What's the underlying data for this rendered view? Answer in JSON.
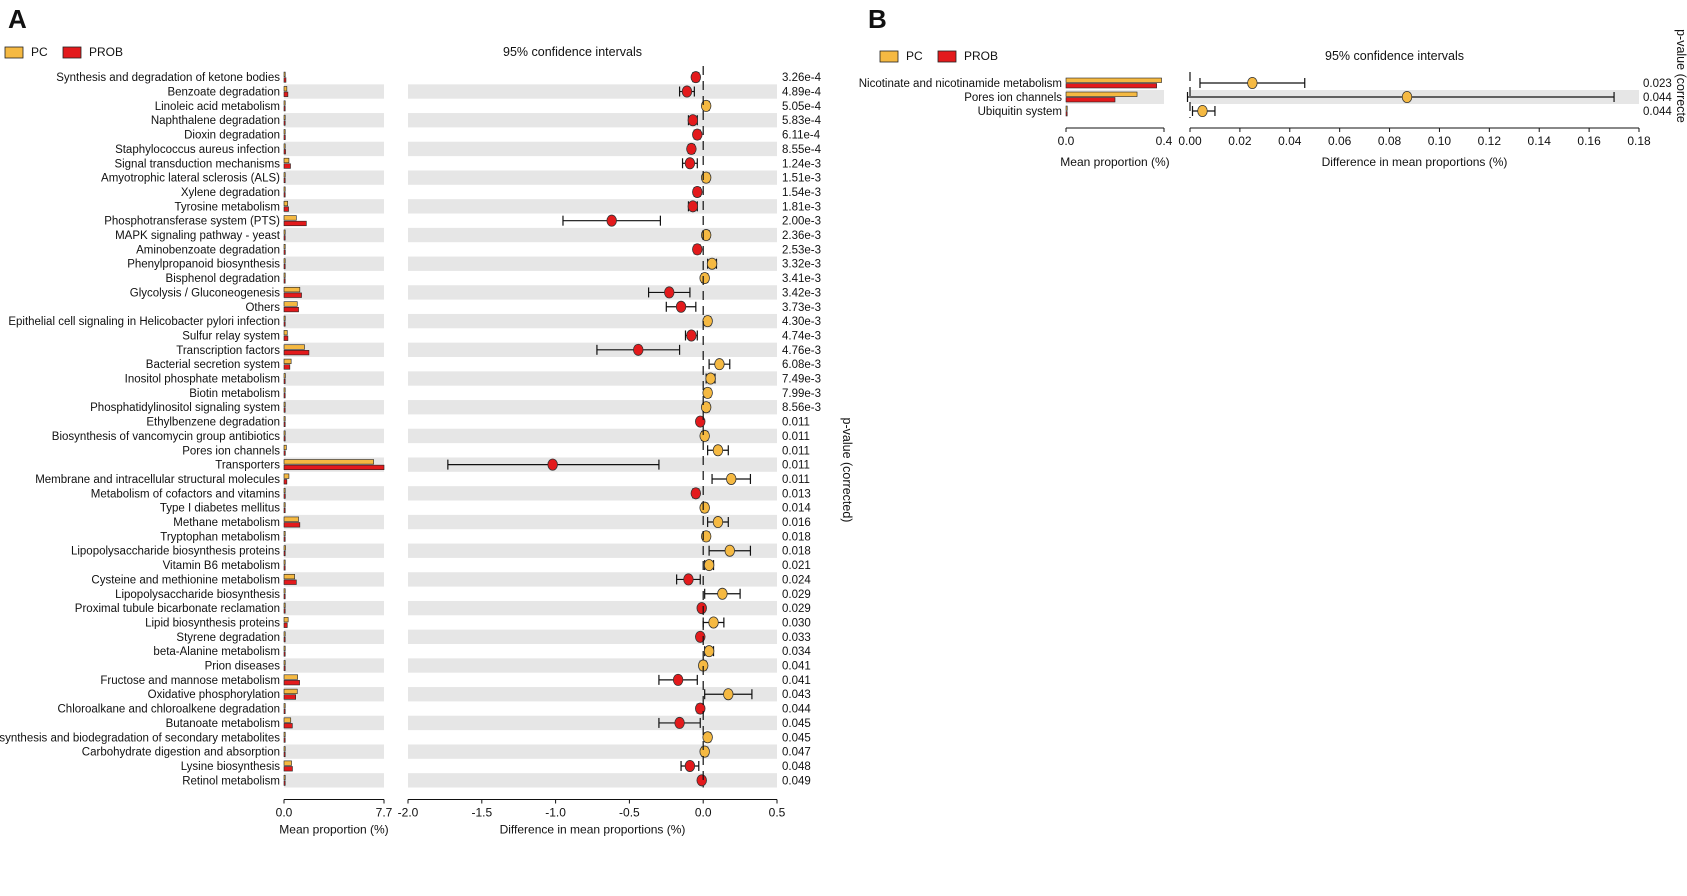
{
  "colors": {
    "pc": "#f5b942",
    "prob": "#e31a1c",
    "stripe": "#e6e6e6"
  },
  "chart_data": [
    {
      "panel": "A",
      "type": "bar",
      "title": "95% confidence intervals",
      "legend": [
        "PC",
        "PROB"
      ],
      "categories": [
        "Synthesis and degradation of ketone bodies",
        "Benzoate degradation",
        "Linoleic acid metabolism",
        "Naphthalene degradation",
        "Dioxin degradation",
        "Staphylococcus aureus infection",
        "Signal transduction mechanisms",
        "Amyotrophic lateral sclerosis (ALS)",
        "Xylene degradation",
        "Tyrosine metabolism",
        "Phosphotransferase system (PTS)",
        "MAPK signaling pathway - yeast",
        "Aminobenzoate degradation",
        "Phenylpropanoid biosynthesis",
        "Bisphenol degradation",
        "Glycolysis / Gluconeogenesis",
        "Others",
        "Epithelial cell signaling in Helicobacter pylori infection",
        "Sulfur relay system",
        "Transcription factors",
        "Bacterial secretion system",
        "Inositol phosphate metabolism",
        "Biotin metabolism",
        "Phosphatidylinositol signaling system",
        "Ethylbenzene degradation",
        "Biosynthesis of vancomycin group antibiotics",
        "Pores ion channels",
        "Transporters",
        "Membrane and intracellular structural molecules",
        "Metabolism of cofactors and vitamins",
        "Type I diabetes mellitus",
        "Methane metabolism",
        "Tryptophan metabolism",
        "Lipopolysaccharide biosynthesis proteins",
        "Vitamin B6 metabolism",
        "Cysteine and methionine metabolism",
        "Lipopolysaccharide biosynthesis",
        "Proximal tubule bicarbonate reclamation",
        "Lipid biosynthesis proteins",
        "Styrene degradation",
        "beta-Alanine metabolism",
        "Prion diseases",
        "Fructose and mannose metabolism",
        "Oxidative phosphorylation",
        "Chloroalkane and chloroalkene degradation",
        "Butanoate metabolism",
        "Biosynthesis and biodegradation of secondary metabolites",
        "Carbohydrate digestion and absorption",
        "Lysine biosynthesis",
        "Retinol metabolism"
      ],
      "pvalues": [
        "3.26e-4",
        "4.89e-4",
        "5.05e-4",
        "5.83e-4",
        "6.11e-4",
        "8.55e-4",
        "1.24e-3",
        "1.51e-3",
        "1.54e-3",
        "1.81e-3",
        "2.00e-3",
        "2.36e-3",
        "2.53e-3",
        "3.32e-3",
        "3.41e-3",
        "3.42e-3",
        "3.73e-3",
        "4.30e-3",
        "4.74e-3",
        "4.76e-3",
        "6.08e-3",
        "7.49e-3",
        "7.99e-3",
        "8.56e-3",
        "0.011",
        "0.011",
        "0.011",
        "0.011",
        "0.011",
        "0.013",
        "0.014",
        "0.016",
        "0.018",
        "0.018",
        "0.021",
        "0.024",
        "0.029",
        "0.029",
        "0.030",
        "0.033",
        "0.034",
        "0.041",
        "0.041",
        "0.043",
        "0.044",
        "0.045",
        "0.045",
        "0.047",
        "0.048",
        "0.049"
      ],
      "series": [
        {
          "name": "PC",
          "values": [
            0.05,
            0.22,
            0.05,
            0.05,
            0.05,
            0.05,
            0.38,
            0.04,
            0.05,
            0.28,
            0.95,
            0.04,
            0.05,
            0.06,
            0.05,
            1.22,
            1.02,
            0.06,
            0.25,
            1.58,
            0.55,
            0.1,
            0.07,
            0.06,
            0.03,
            0.06,
            0.18,
            6.9,
            0.38,
            0.06,
            0.03,
            1.12,
            0.08,
            0.12,
            0.05,
            0.82,
            0.08,
            0.03,
            0.32,
            0.04,
            0.08,
            0.05,
            1.05,
            1.02,
            0.04,
            0.52,
            0.06,
            0.03,
            0.58,
            0.03
          ]
        },
        {
          "name": "PROB",
          "values": [
            0.15,
            0.3,
            0.04,
            0.08,
            0.1,
            0.12,
            0.5,
            0.03,
            0.09,
            0.35,
            1.72,
            0.03,
            0.1,
            0.02,
            0.04,
            1.35,
            1.12,
            0.05,
            0.3,
            1.92,
            0.45,
            0.05,
            0.04,
            0.05,
            0.05,
            0.05,
            0.1,
            7.7,
            0.22,
            0.1,
            0.02,
            1.22,
            0.06,
            0.04,
            0.04,
            0.95,
            0.06,
            0.05,
            0.25,
            0.06,
            0.07,
            0.05,
            1.2,
            0.9,
            0.06,
            0.64,
            0.05,
            0.02,
            0.65,
            0.06
          ]
        }
      ],
      "diff": [
        -0.05,
        -0.11,
        0.02,
        -0.07,
        -0.04,
        -0.08,
        -0.09,
        0.02,
        -0.04,
        -0.07,
        -0.62,
        0.02,
        -0.04,
        0.06,
        0.01,
        -0.23,
        -0.15,
        0.03,
        -0.08,
        -0.44,
        0.11,
        0.05,
        0.03,
        0.02,
        -0.02,
        0.01,
        0.1,
        -1.02,
        0.19,
        -0.05,
        0.01,
        0.1,
        0.02,
        0.18,
        0.04,
        -0.1,
        0.13,
        -0.01,
        0.07,
        -0.02,
        0.04,
        0.0,
        -0.17,
        0.17,
        -0.02,
        -0.16,
        0.03,
        0.01,
        -0.09,
        -0.01
      ],
      "ci_low": [
        -0.07,
        -0.16,
        0.0,
        -0.1,
        -0.06,
        -0.1,
        -0.14,
        0.0,
        -0.06,
        -0.1,
        -0.95,
        0.0,
        -0.06,
        0.03,
        -0.01,
        -0.37,
        -0.25,
        0.01,
        -0.12,
        -0.72,
        0.04,
        0.02,
        0.01,
        0.0,
        -0.03,
        -0.01,
        0.03,
        -1.73,
        0.06,
        -0.07,
        -0.01,
        0.03,
        0.0,
        0.04,
        0.01,
        -0.18,
        0.01,
        -0.02,
        0.0,
        -0.03,
        0.01,
        -0.02,
        -0.3,
        0.01,
        -0.04,
        -0.3,
        0.01,
        -0.01,
        -0.15,
        -0.02
      ],
      "ci_high": [
        -0.03,
        -0.06,
        0.04,
        -0.04,
        -0.02,
        -0.06,
        -0.04,
        0.04,
        -0.02,
        -0.04,
        -0.29,
        0.04,
        -0.02,
        0.09,
        0.03,
        -0.09,
        -0.05,
        0.05,
        -0.04,
        -0.16,
        0.18,
        0.08,
        0.05,
        0.04,
        -0.01,
        0.03,
        0.17,
        -0.3,
        0.32,
        -0.03,
        0.03,
        0.17,
        0.04,
        0.32,
        0.07,
        -0.02,
        0.25,
        0.0,
        0.14,
        -0.01,
        0.07,
        0.02,
        -0.04,
        0.33,
        0.0,
        -0.02,
        0.05,
        0.03,
        -0.03,
        0.0
      ],
      "bar_axis": {
        "xlabel": "Mean proportion (%)",
        "xlim": [
          0,
          7.7
        ],
        "ticks": [
          "0.0",
          "7.7"
        ]
      },
      "diff_axis": {
        "xlabel": "Difference in mean proportions (%)",
        "xlim": [
          -2.0,
          0.5
        ],
        "ticks": [
          "-2.0",
          "-1.5",
          "-1.0",
          "-0.5",
          "0.0",
          "0.5"
        ]
      },
      "ylabel_right": "p-value (corrected)"
    },
    {
      "panel": "B",
      "type": "bar",
      "title": "95% confidence intervals",
      "legend": [
        "PC",
        "PROB"
      ],
      "categories": [
        "Nicotinate and nicotinamide metabolism",
        "Pores ion channels",
        "Ubiquitin system"
      ],
      "pvalues": [
        "0.023",
        "0.044",
        "0.044"
      ],
      "series": [
        {
          "name": "PC",
          "values": [
            0.39,
            0.29,
            0.005
          ]
        },
        {
          "name": "PROB",
          "values": [
            0.37,
            0.2,
            0.002
          ]
        }
      ],
      "diff": [
        0.025,
        0.087,
        0.005
      ],
      "ci_low": [
        0.004,
        -0.001,
        0.001
      ],
      "ci_high": [
        0.046,
        0.17,
        0.01
      ],
      "bar_axis": {
        "xlabel": "Mean proportion (%)",
        "xlim": [
          0,
          0.4
        ],
        "ticks": [
          "0.0",
          "0.4"
        ]
      },
      "diff_axis": {
        "xlabel": "Difference in mean proportions (%)",
        "xlim": [
          0,
          0.18
        ],
        "ticks": [
          "0.00",
          "0.02",
          "0.04",
          "0.06",
          "0.08",
          "0.10",
          "0.12",
          "0.14",
          "0.16",
          "0.18"
        ]
      },
      "ylabel_right": "p-value (correcte"
    }
  ]
}
